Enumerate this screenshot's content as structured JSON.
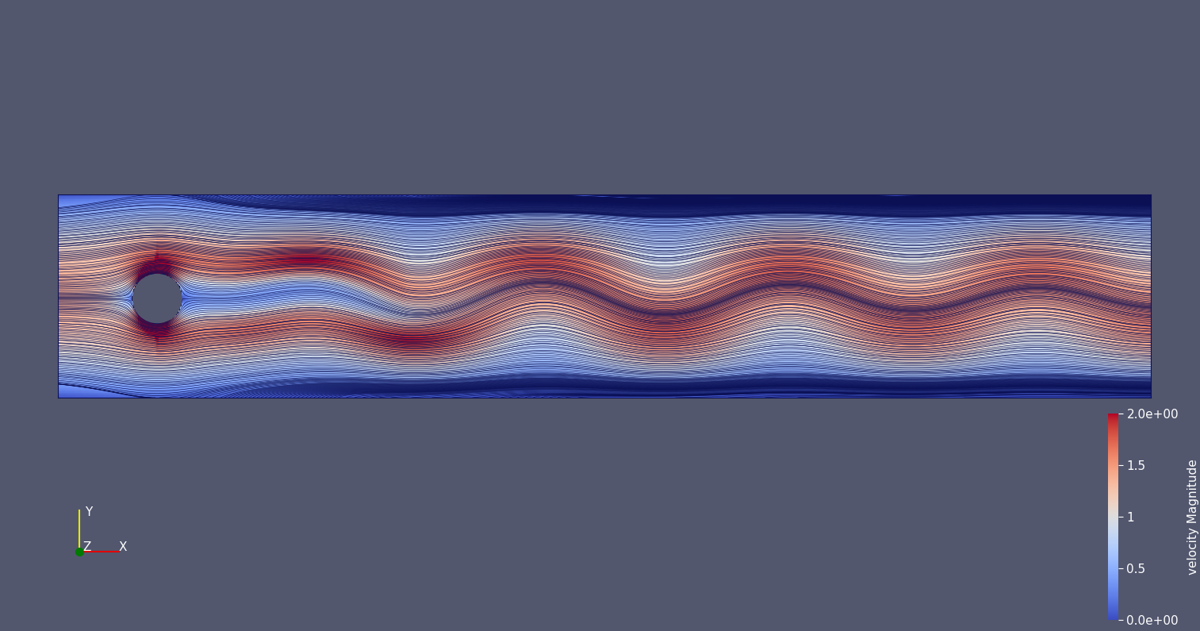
{
  "chart_data": {
    "type": "streamlines",
    "colorbar": {
      "label": "velocity Magnitude",
      "range": [
        0,
        2
      ],
      "ticks": [
        {
          "value": 0,
          "label": "0.0e+00"
        },
        0.5,
        1,
        1.5,
        {
          "value": 2,
          "label": "2.0e+00"
        }
      ]
    },
    "axes_triad": [
      "X",
      "Y",
      "Z"
    ],
    "tick_labels": false
  }
}
